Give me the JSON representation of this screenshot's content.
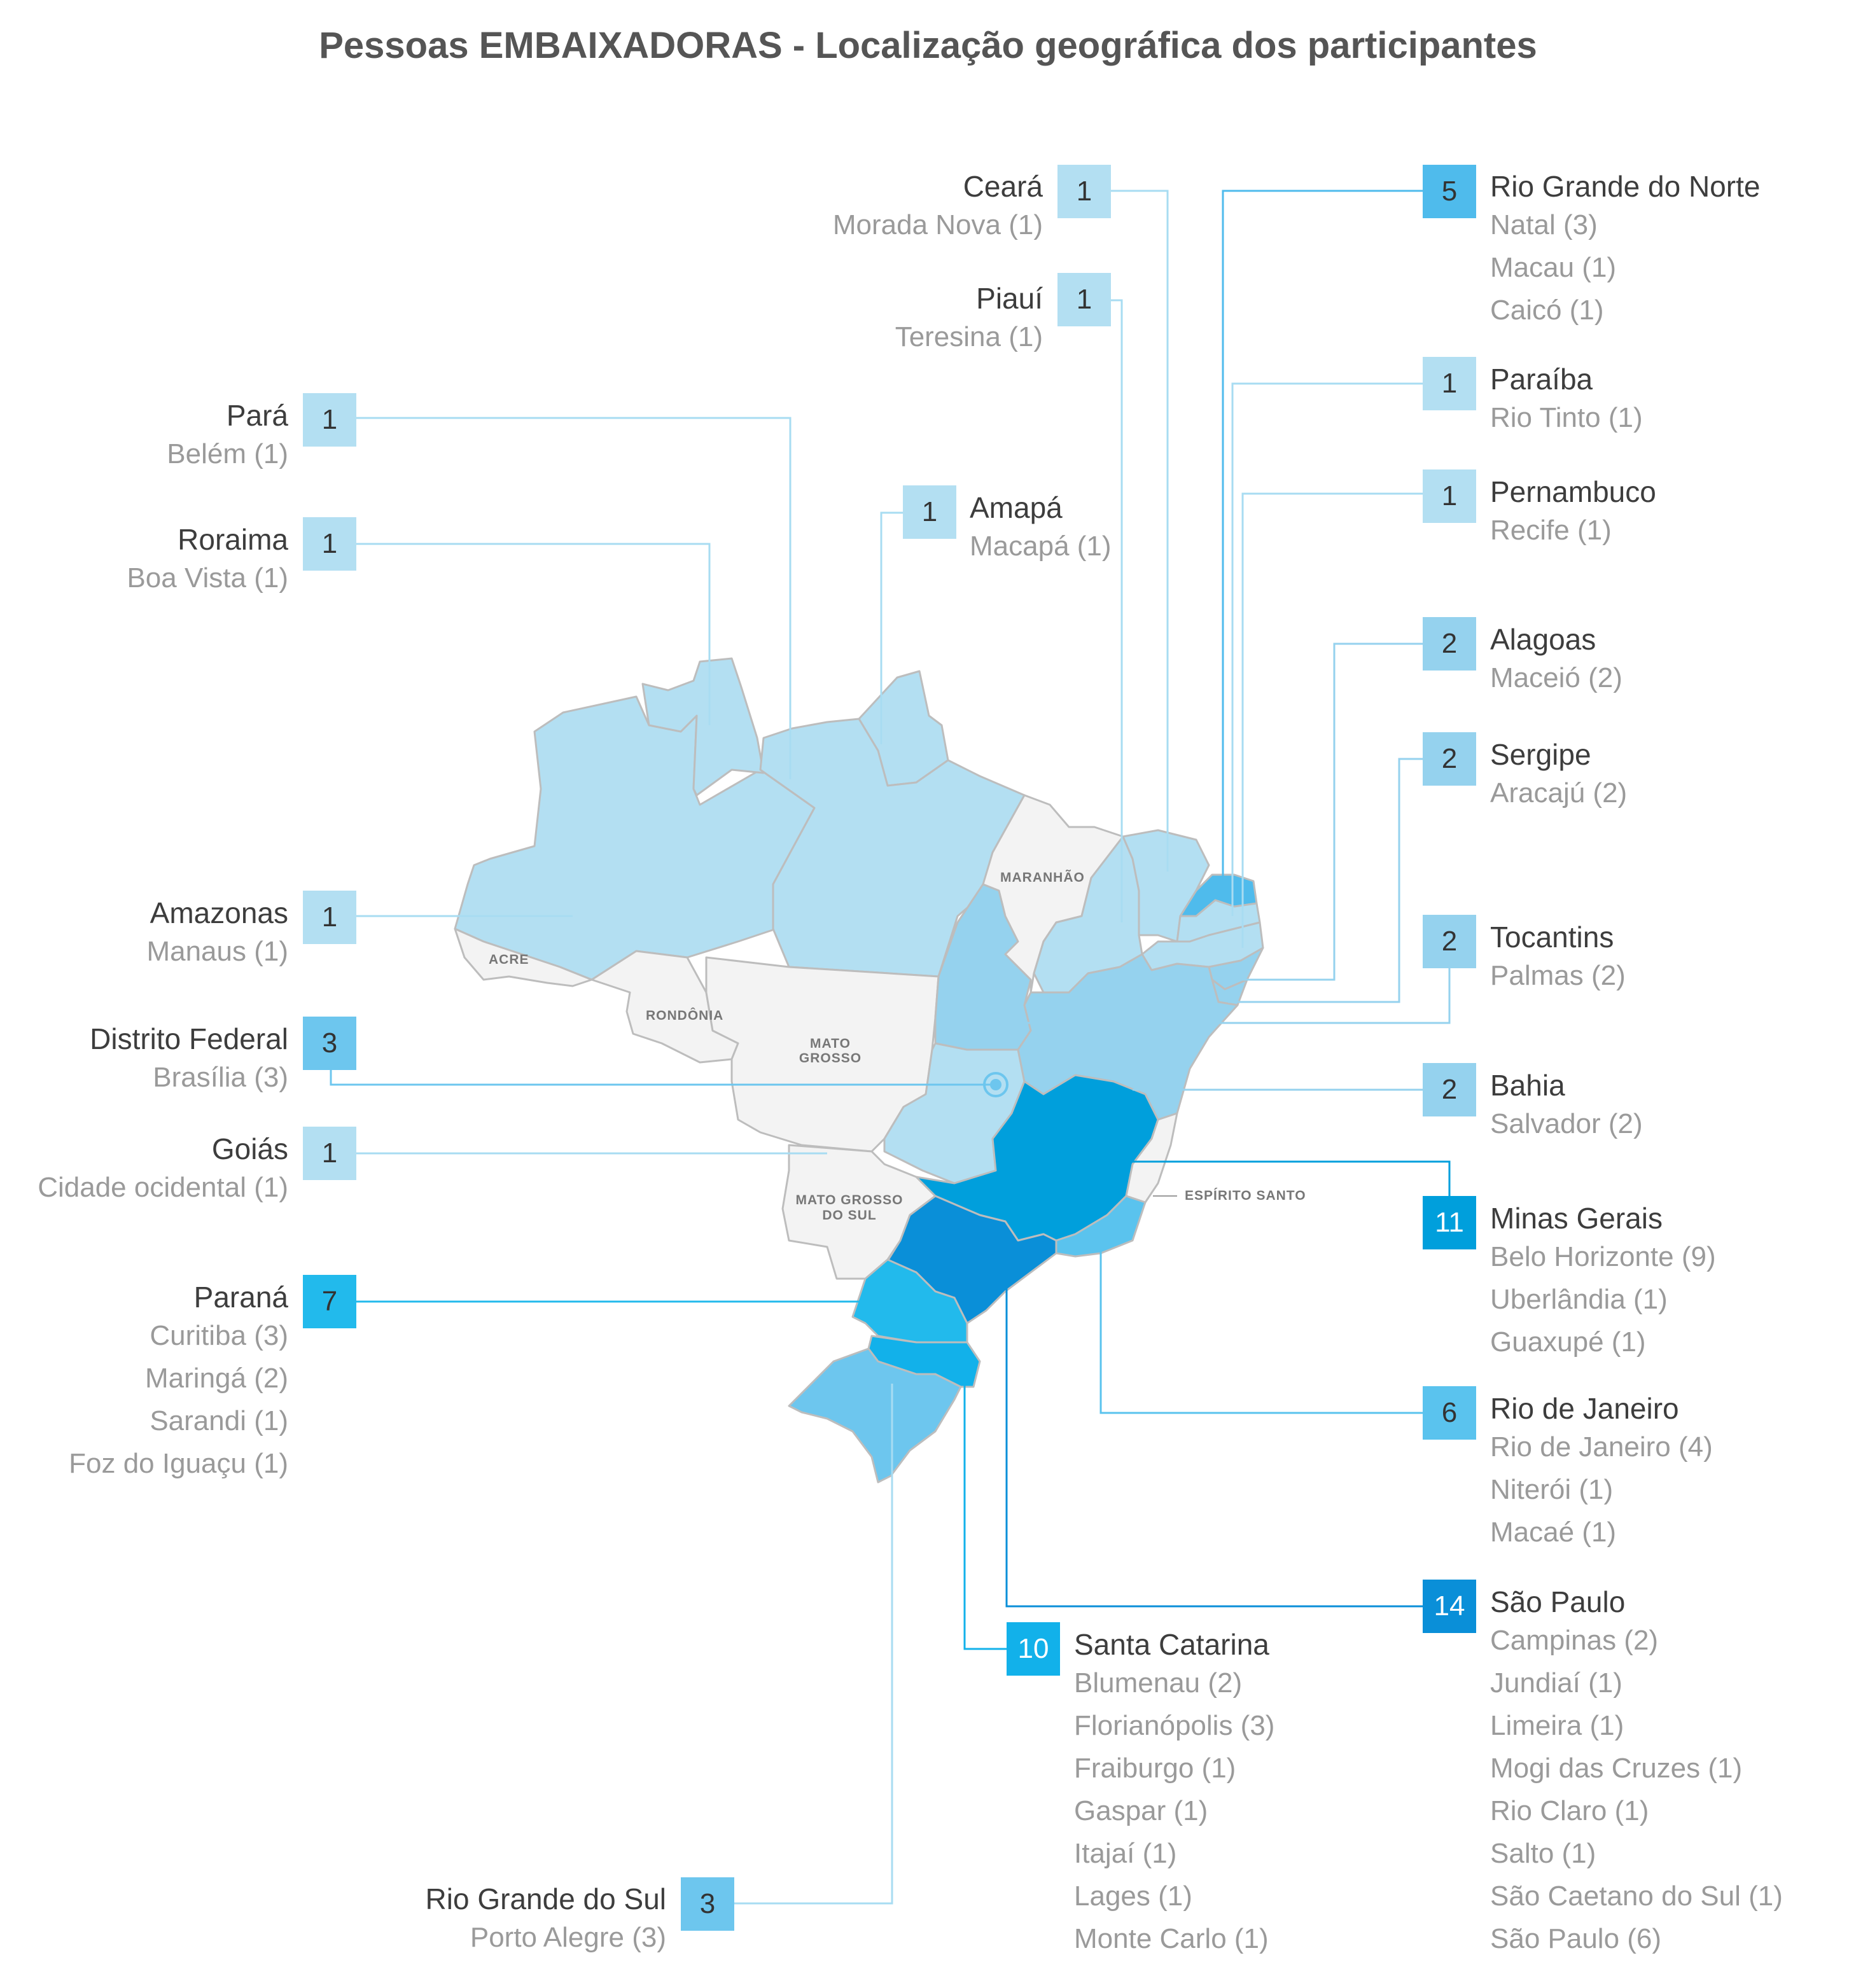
{
  "title": "Pessoas EMBAIXADORAS - Localização geográfica dos participantes",
  "colors": {
    "level1": "#b3dff2",
    "level2": "#95d2ee",
    "level3": "#6dc6ee",
    "level5": "#4fbbec",
    "level6": "#5ac3ee",
    "level7": "#22baec",
    "level10": "#12b1ea",
    "level11": "#009fdc",
    "level14": "#0a8fd8",
    "no_data": "#f3f3f3",
    "border": "#bdbdbd"
  },
  "map_labels": {
    "acre": "ACRE",
    "rondonia": "RONDÔNIA",
    "mato_grosso": [
      "MATO",
      "GROSSO"
    ],
    "maranhao": "MARANHÃO",
    "mato_grosso_do_sul": [
      "MATO GROSSO",
      "DO SUL"
    ],
    "espirito_santo": "ESPÍRITO SANTO"
  },
  "states": {
    "ceara": {
      "name": "Ceará",
      "count": "1",
      "cities": [
        "Morada Nova (1)"
      ]
    },
    "piaui": {
      "name": "Piauí",
      "count": "1",
      "cities": [
        "Teresina (1)"
      ]
    },
    "para": {
      "name": "Pará",
      "count": "1",
      "cities": [
        "Belém (1)"
      ]
    },
    "roraima": {
      "name": "Roraima",
      "count": "1",
      "cities": [
        "Boa Vista (1)"
      ]
    },
    "amapa": {
      "name": "Amapá",
      "count": "1",
      "cities": [
        "Macapá (1)"
      ]
    },
    "amazonas": {
      "name": "Amazonas",
      "count": "1",
      "cities": [
        "Manaus (1)"
      ]
    },
    "distrito_federal": {
      "name": "Distrito Federal",
      "count": "3",
      "cities": [
        "Brasília (3)"
      ]
    },
    "goias": {
      "name": "Goiás",
      "count": "1",
      "cities": [
        "Cidade ocidental (1)"
      ]
    },
    "parana": {
      "name": "Paraná",
      "count": "7",
      "cities": [
        "Curitiba (3)",
        "Maringá (2)",
        "Sarandi (1)",
        "Foz do Iguaçu (1)"
      ]
    },
    "rio_grande_do_sul": {
      "name": "Rio Grande do Sul",
      "count": "3",
      "cities": [
        "Porto Alegre (3)"
      ]
    },
    "santa_catarina": {
      "name": "Santa Catarina",
      "count": "10",
      "cities": [
        "Blumenau (2)",
        "Florianópolis (3)",
        "Fraiburgo (1)",
        "Gaspar (1)",
        "Itajaí (1)",
        "Lages (1)",
        "Monte Carlo (1)"
      ]
    },
    "rio_grande_do_norte": {
      "name": "Rio Grande do Norte",
      "count": "5",
      "cities": [
        "Natal (3)",
        "Macau (1)",
        "Caicó (1)"
      ]
    },
    "paraiba": {
      "name": "Paraíba",
      "count": "1",
      "cities": [
        "Rio Tinto (1)"
      ]
    },
    "pernambuco": {
      "name": "Pernambuco",
      "count": "1",
      "cities": [
        "Recife (1)"
      ]
    },
    "alagoas": {
      "name": "Alagoas",
      "count": "2",
      "cities": [
        "Maceió (2)"
      ]
    },
    "sergipe": {
      "name": "Sergipe",
      "count": "2",
      "cities": [
        "Aracajú (2)"
      ]
    },
    "tocantins": {
      "name": "Tocantins",
      "count": "2",
      "cities": [
        "Palmas (2)"
      ]
    },
    "bahia": {
      "name": "Bahia",
      "count": "2",
      "cities": [
        "Salvador (2)"
      ]
    },
    "minas_gerais": {
      "name": "Minas Gerais",
      "count": "11",
      "cities": [
        "Belo Horizonte (9)",
        "Uberlândia (1)",
        "Guaxupé (1)"
      ]
    },
    "rio_de_janeiro": {
      "name": "Rio de Janeiro",
      "count": "6",
      "cities": [
        "Rio de Janeiro (4)",
        "Niterói (1)",
        "Macaé (1)"
      ]
    },
    "sao_paulo": {
      "name": "São Paulo",
      "count": "14",
      "cities": [
        "Campinas (2)",
        "Jundiaí (1)",
        "Limeira (1)",
        "Mogi das Cruzes (1)",
        "Rio Claro (1)",
        "Salto (1)",
        "São Caetano do Sul (1)",
        "São Paulo (6)"
      ]
    }
  }
}
